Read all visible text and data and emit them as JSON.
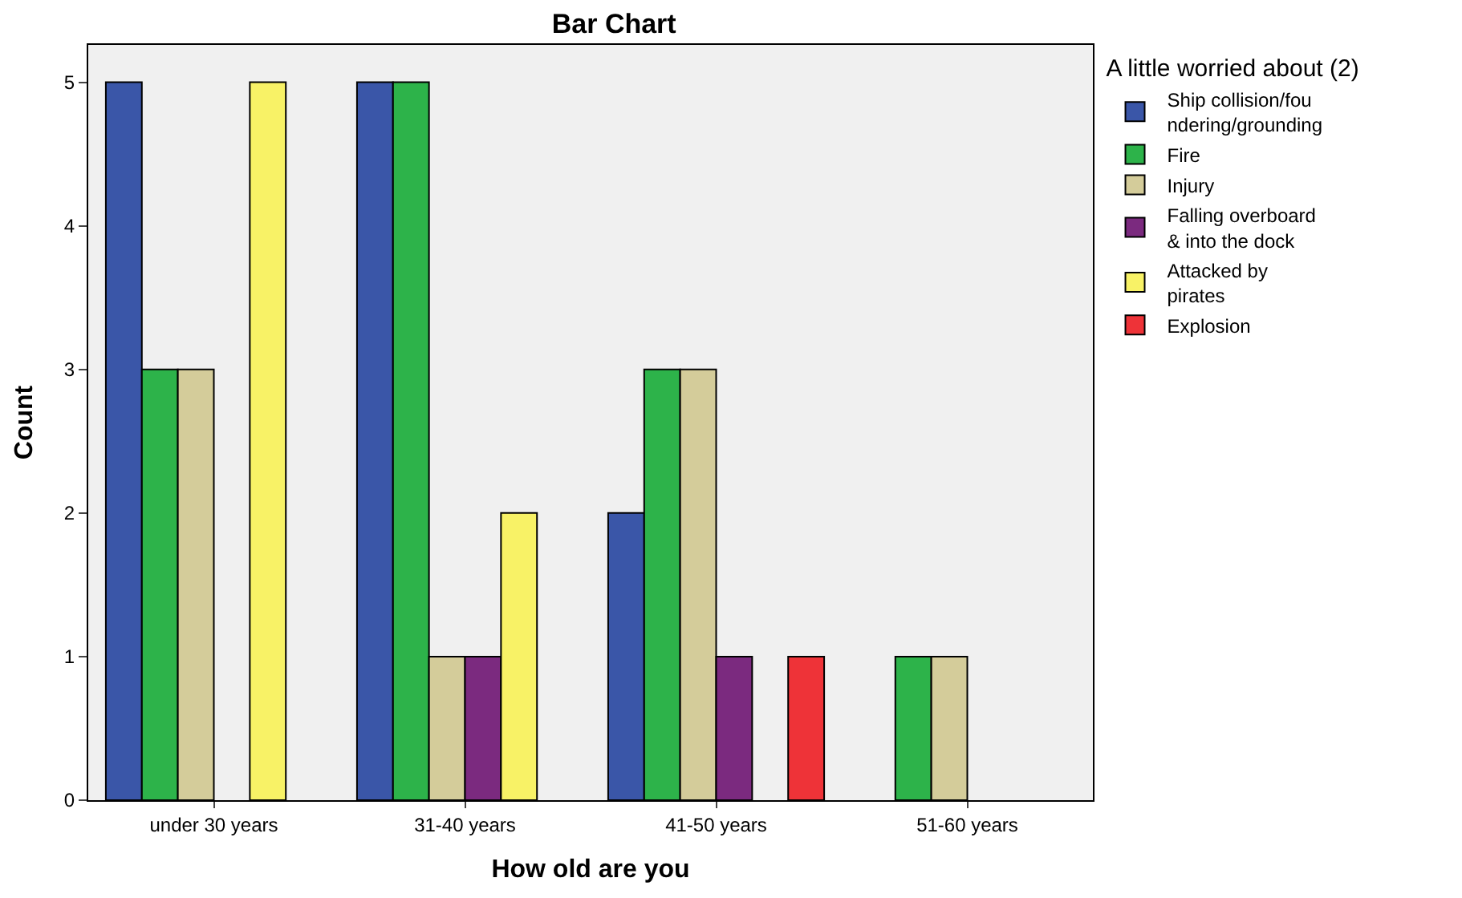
{
  "chart_data": {
    "type": "bar",
    "title": "Bar Chart",
    "xlabel": "How old are you",
    "ylabel": "Count",
    "legend_title": "A little worried about (2)",
    "categories": [
      "under 30 years",
      "31-40 years",
      "41-50 years",
      "51-60 years"
    ],
    "series": [
      {
        "name": "Ship collision/foundering/grounding",
        "color": "#3a56a8",
        "values": [
          5,
          5,
          2,
          null
        ]
      },
      {
        "name": "Fire",
        "color": "#2db34a",
        "values": [
          3,
          5,
          3,
          1
        ]
      },
      {
        "name": "Injury",
        "color": "#d4cc9a",
        "values": [
          3,
          1,
          3,
          1
        ]
      },
      {
        "name": "Falling overboard & into the dock",
        "color": "#7b2a7f",
        "values": [
          null,
          1,
          1,
          null
        ]
      },
      {
        "name": "Attacked by pirates",
        "color": "#f8f266",
        "values": [
          5,
          2,
          null,
          null
        ]
      },
      {
        "name": "Explosion",
        "color": "#ee3338",
        "values": [
          null,
          null,
          1,
          null
        ]
      }
    ],
    "ylim": [
      0,
      5.26
    ],
    "yticks": [
      0,
      1,
      2,
      3,
      4,
      5
    ],
    "grid": false,
    "legend": "top right"
  }
}
